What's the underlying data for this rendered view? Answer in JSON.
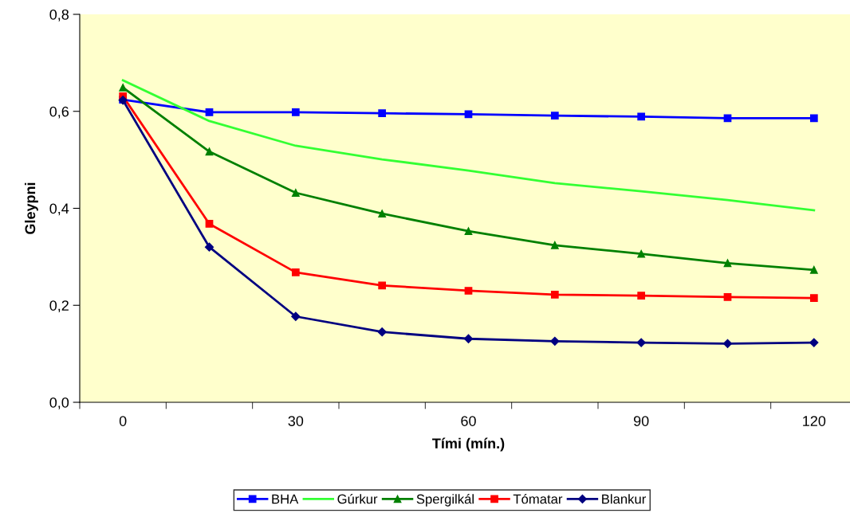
{
  "chart_data": {
    "type": "line",
    "xlabel": "Tími (mín.)",
    "ylabel": "Gleypni",
    "categories": [
      "0",
      null,
      "30",
      null,
      "60",
      null,
      "90",
      null,
      "120"
    ],
    "ylim": [
      0,
      0.8
    ],
    "yticks": [
      {
        "value": 0,
        "label": "0,0"
      },
      {
        "value": 0.2,
        "label": "0,2"
      },
      {
        "value": 0.4,
        "label": "0,4"
      },
      {
        "value": 0.6,
        "label": "0,6"
      },
      {
        "value": 0.8,
        "label": "0,8"
      }
    ],
    "grid": false,
    "legend": "bottom",
    "line_style": "solid",
    "series": [
      {
        "name": "BHA",
        "color": "#0000ff",
        "marker": "square",
        "values": [
          0.624,
          0.598,
          0.598,
          0.596,
          0.594,
          0.591,
          0.589,
          0.586,
          0.586
        ]
      },
      {
        "name": "Gúrkur",
        "color": "#33ff33",
        "marker": "none",
        "values": [
          0.664,
          0.58,
          0.529,
          0.501,
          0.478,
          0.452,
          0.435,
          0.417,
          0.396
        ]
      },
      {
        "name": "Spergilkál",
        "color": "#008000",
        "marker": "triangle",
        "values": [
          0.649,
          0.517,
          0.432,
          0.389,
          0.353,
          0.324,
          0.306,
          0.287,
          0.273
        ]
      },
      {
        "name": "Tómatar",
        "color": "#ff0000",
        "marker": "square",
        "values": [
          0.631,
          0.368,
          0.268,
          0.241,
          0.23,
          0.222,
          0.22,
          0.217,
          0.215
        ]
      },
      {
        "name": "Blankur",
        "color": "#000080",
        "marker": "diamond",
        "values": [
          0.623,
          0.32,
          0.177,
          0.145,
          0.131,
          0.126,
          0.123,
          0.121,
          0.123
        ]
      }
    ]
  }
}
